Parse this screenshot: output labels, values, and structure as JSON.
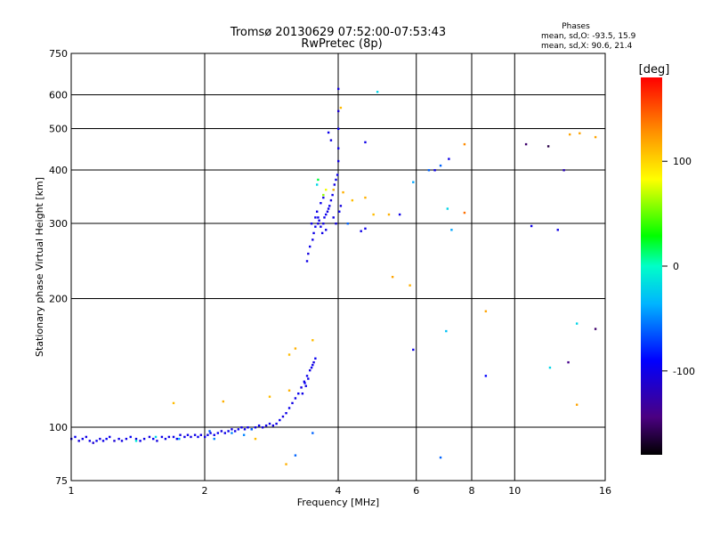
{
  "chart_data": {
    "type": "scatter",
    "title": "Tromsø 20130629 07:52:00-07:53:43",
    "subtitle": "RwPretec (8p)",
    "xlabel": "Frequency [MHz]",
    "ylabel": "Stationary phase Virtual Height [km]",
    "x_scale": "log",
    "y_scale": "log",
    "xlim": [
      1,
      16
    ],
    "ylim": [
      75,
      750
    ],
    "x_ticks": [
      1,
      2,
      4,
      6,
      8,
      10,
      16
    ],
    "y_ticks": [
      75,
      100,
      200,
      300,
      400,
      500,
      600,
      750
    ],
    "grid": true,
    "phases_box": {
      "heading": "Phases",
      "line_o": "mean, sd,O:  -93.5, 15.9",
      "line_x": "mean, sd,X:  90.6, 21.4"
    },
    "colorbar": {
      "label": "[deg]",
      "range": [
        -180,
        180
      ],
      "ticks": [
        100,
        0,
        -100
      ]
    },
    "series": [
      {
        "points": [
          [
            1.0,
            94,
            -100
          ],
          [
            1.02,
            95,
            -95
          ],
          [
            1.04,
            93,
            -105
          ],
          [
            1.06,
            94,
            -98
          ],
          [
            1.08,
            95,
            -102
          ],
          [
            1.1,
            93,
            -100
          ],
          [
            1.12,
            92,
            -110
          ],
          [
            1.14,
            93,
            -96
          ],
          [
            1.16,
            94,
            -104
          ],
          [
            1.18,
            93,
            -100
          ],
          [
            1.2,
            94,
            -92
          ],
          [
            1.22,
            95,
            -100
          ],
          [
            1.25,
            93,
            -108
          ],
          [
            1.28,
            94,
            -98
          ],
          [
            1.3,
            93,
            -102
          ],
          [
            1.33,
            94,
            -100
          ],
          [
            1.36,
            95,
            -95
          ],
          [
            1.4,
            94,
            -105
          ],
          [
            1.43,
            93,
            -98
          ],
          [
            1.46,
            94,
            -100
          ],
          [
            1.5,
            95,
            -102
          ],
          [
            1.53,
            94,
            -96
          ],
          [
            1.56,
            93,
            -104
          ],
          [
            1.6,
            95,
            -100
          ],
          [
            1.63,
            94,
            -98
          ],
          [
            1.66,
            95,
            -102
          ],
          [
            1.7,
            95,
            -100
          ],
          [
            1.73,
            94,
            -96
          ],
          [
            1.76,
            96,
            -104
          ],
          [
            1.8,
            95,
            -100
          ],
          [
            1.83,
            96,
            -98
          ],
          [
            1.86,
            95,
            -102
          ],
          [
            1.9,
            96,
            -100
          ],
          [
            1.93,
            95,
            -96
          ],
          [
            1.96,
            96,
            -104
          ],
          [
            2.0,
            95,
            -100
          ],
          [
            2.03,
            96,
            -98
          ],
          [
            2.06,
            97,
            -102
          ],
          [
            2.1,
            96,
            -100
          ],
          [
            2.14,
            97,
            -96
          ],
          [
            2.18,
            98,
            -104
          ],
          [
            2.22,
            97,
            -100
          ],
          [
            2.26,
            98,
            -98
          ],
          [
            2.3,
            99,
            -102
          ],
          [
            2.34,
            98,
            -100
          ],
          [
            2.38,
            99,
            -96
          ],
          [
            2.42,
            100,
            -104
          ],
          [
            2.46,
            99,
            -100
          ],
          [
            2.5,
            100,
            -98
          ],
          [
            2.55,
            99,
            -102
          ],
          [
            2.6,
            100,
            -100
          ],
          [
            2.65,
            101,
            -96
          ],
          [
            2.7,
            100,
            -104
          ],
          [
            2.75,
            101,
            -100
          ],
          [
            2.8,
            102,
            -98
          ],
          [
            2.85,
            101,
            -102
          ],
          [
            2.9,
            102,
            -100
          ],
          [
            2.95,
            104,
            -96
          ],
          [
            3.0,
            106,
            -104
          ],
          [
            3.05,
            108,
            -100
          ],
          [
            3.1,
            111,
            -98
          ],
          [
            3.15,
            114,
            -102
          ],
          [
            3.2,
            117,
            -100
          ],
          [
            3.25,
            120,
            -96
          ],
          [
            3.3,
            124,
            -104
          ],
          [
            3.35,
            128,
            -100
          ],
          [
            3.4,
            132,
            -98
          ],
          [
            3.45,
            136,
            -102
          ],
          [
            3.5,
            140,
            -100
          ],
          [
            3.55,
            145,
            -96
          ],
          [
            3.38,
            125,
            -102
          ],
          [
            3.42,
            130,
            -100
          ],
          [
            3.48,
            138,
            -98
          ],
          [
            3.52,
            142,
            -104
          ],
          [
            3.32,
            120,
            -100
          ],
          [
            3.36,
            127,
            -96
          ],
          [
            2.05,
            98,
            -60
          ],
          [
            2.3,
            97,
            -50
          ],
          [
            2.55,
            99,
            -60
          ],
          [
            1.55,
            95,
            -20
          ],
          [
            2.1,
            94,
            -50
          ],
          [
            1.4,
            93,
            -10
          ],
          [
            2.45,
            96,
            -50
          ],
          [
            1.75,
            94,
            -40
          ],
          [
            1.7,
            114,
            110
          ],
          [
            2.2,
            115,
            115
          ],
          [
            2.8,
            118,
            110
          ],
          [
            3.1,
            122,
            115
          ],
          [
            3.1,
            148,
            110
          ],
          [
            3.2,
            153,
            115
          ],
          [
            3.5,
            160,
            110
          ],
          [
            3.05,
            82,
            115
          ],
          [
            3.2,
            86,
            -60
          ],
          [
            3.5,
            97,
            -60
          ],
          [
            2.6,
            94,
            110
          ],
          [
            3.4,
            245,
            -100
          ],
          [
            3.42,
            255,
            -104
          ],
          [
            3.45,
            265,
            -98
          ],
          [
            3.5,
            275,
            -102
          ],
          [
            3.52,
            285,
            -100
          ],
          [
            3.55,
            295,
            -96
          ],
          [
            3.6,
            300,
            -104
          ],
          [
            3.62,
            305,
            -100
          ],
          [
            3.65,
            295,
            -98
          ],
          [
            3.7,
            300,
            -102
          ],
          [
            3.72,
            310,
            -100
          ],
          [
            3.75,
            315,
            -96
          ],
          [
            3.78,
            320,
            -104
          ],
          [
            3.8,
            325,
            -100
          ],
          [
            3.82,
            330,
            -98
          ],
          [
            3.85,
            340,
            -102
          ],
          [
            3.88,
            350,
            -100
          ],
          [
            3.9,
            360,
            -96
          ],
          [
            3.92,
            370,
            -104
          ],
          [
            3.95,
            380,
            -100
          ],
          [
            3.98,
            390,
            -98
          ],
          [
            4.0,
            420,
            -102
          ],
          [
            4.0,
            450,
            -100
          ],
          [
            4.0,
            500,
            -96
          ],
          [
            4.0,
            550,
            -110
          ],
          [
            4.0,
            620,
            -104
          ],
          [
            3.8,
            490,
            -98
          ],
          [
            3.85,
            470,
            -102
          ],
          [
            3.58,
            320,
            -100
          ],
          [
            3.65,
            335,
            -98
          ],
          [
            3.7,
            345,
            -102
          ],
          [
            3.75,
            290,
            -100
          ],
          [
            3.95,
            300,
            -104
          ],
          [
            3.6,
            310,
            -98
          ],
          [
            3.9,
            310,
            -102
          ],
          [
            3.68,
            285,
            -100
          ],
          [
            4.02,
            320,
            -96
          ],
          [
            4.05,
            330,
            -104
          ],
          [
            3.48,
            300,
            -100
          ],
          [
            3.55,
            310,
            -98
          ],
          [
            3.6,
            380,
            20
          ],
          [
            3.7,
            350,
            60
          ],
          [
            3.75,
            360,
            80
          ],
          [
            3.58,
            370,
            -20
          ],
          [
            3.9,
            360,
            110
          ],
          [
            4.1,
            355,
            115
          ],
          [
            4.3,
            340,
            110
          ],
          [
            4.6,
            345,
            115
          ],
          [
            4.8,
            315,
            110
          ],
          [
            5.2,
            315,
            115
          ],
          [
            4.05,
            560,
            110
          ],
          [
            4.2,
            300,
            -60
          ],
          [
            4.5,
            288,
            -100
          ],
          [
            4.6,
            292,
            -100
          ],
          [
            4.6,
            465,
            -100
          ],
          [
            4.9,
            610,
            -20
          ],
          [
            5.5,
            315,
            -100
          ],
          [
            5.9,
            375,
            -40
          ],
          [
            6.4,
            400,
            -60
          ],
          [
            6.8,
            410,
            -60
          ],
          [
            7.1,
            425,
            -100
          ],
          [
            7.05,
            325,
            -20
          ],
          [
            7.7,
            318,
            140
          ],
          [
            7.7,
            460,
            130
          ],
          [
            5.3,
            225,
            120
          ],
          [
            5.8,
            215,
            115
          ],
          [
            5.9,
            152,
            -100
          ],
          [
            7.0,
            168,
            -30
          ],
          [
            7.2,
            290,
            -40
          ],
          [
            6.6,
            400,
            -100
          ],
          [
            8.6,
            187,
            120
          ],
          [
            8.6,
            132,
            -90
          ],
          [
            10.6,
            460,
            -150
          ],
          [
            10.9,
            296,
            -100
          ],
          [
            11.9,
            455,
            -160
          ],
          [
            12.5,
            290,
            -100
          ],
          [
            12.9,
            400,
            -120
          ],
          [
            13.3,
            485,
            120
          ],
          [
            14.0,
            488,
            120
          ],
          [
            15.2,
            478,
            120
          ],
          [
            13.2,
            142,
            -140
          ],
          [
            12.0,
            138,
            -20
          ],
          [
            13.8,
            113,
            120
          ],
          [
            13.8,
            175,
            -20
          ],
          [
            15.2,
            170,
            -150
          ],
          [
            6.8,
            85,
            -60
          ]
        ]
      }
    ]
  }
}
